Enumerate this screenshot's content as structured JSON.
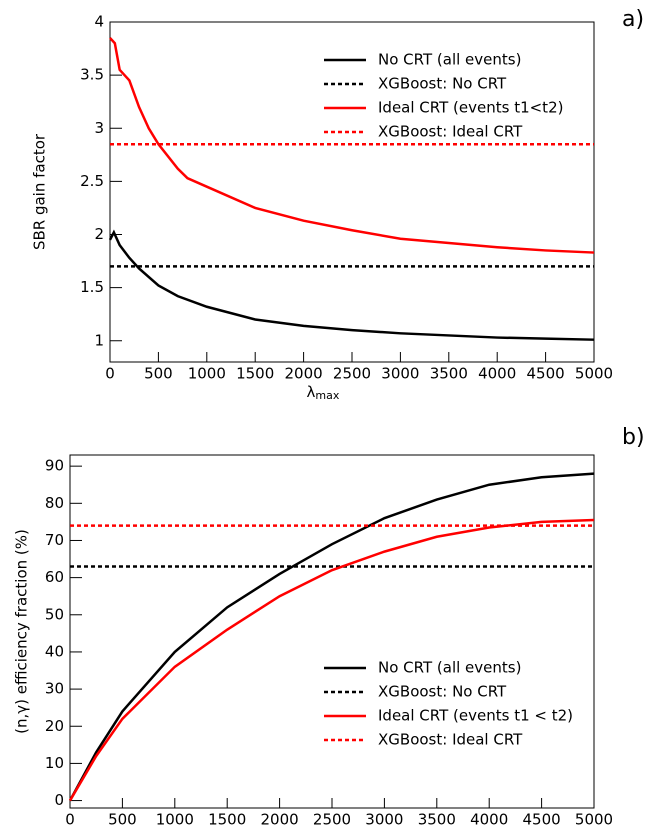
{
  "chart_data": [
    {
      "type": "line",
      "annotation": "a)",
      "ylabel": "SBR gain factor",
      "xlabel": "λ",
      "xlabel_subscript": "max",
      "xlim": [
        0,
        5000
      ],
      "ylim": [
        0.8,
        4
      ],
      "xticks": [
        0,
        500,
        1000,
        1500,
        2000,
        2500,
        3000,
        3500,
        4000,
        4500,
        5000
      ],
      "yticks": [
        1,
        1.5,
        2,
        2.5,
        3,
        3.5,
        4
      ],
      "legend": "upper right",
      "series": [
        {
          "name": "No CRT (all events)",
          "color": "#000000",
          "linestyle": "solid",
          "x": [
            0,
            40,
            100,
            200,
            300,
            500,
            700,
            1000,
            1500,
            2000,
            2500,
            3000,
            3500,
            4000,
            4500,
            5000
          ],
          "values": [
            1.95,
            2.02,
            1.9,
            1.78,
            1.68,
            1.52,
            1.42,
            1.32,
            1.2,
            1.14,
            1.1,
            1.07,
            1.05,
            1.03,
            1.02,
            1.01
          ]
        },
        {
          "name": "XGBoost: No CRT",
          "color": "#000000",
          "linestyle": "dotted",
          "x": [
            0,
            5000
          ],
          "values": [
            1.7,
            1.7
          ]
        },
        {
          "name": "Ideal CRT (events t1<t2)",
          "color": "#ff0000",
          "linestyle": "solid",
          "x": [
            0,
            50,
            100,
            200,
            300,
            400,
            500,
            700,
            800,
            1000,
            1500,
            2000,
            2500,
            3000,
            3500,
            4000,
            4500,
            5000
          ],
          "values": [
            3.85,
            3.8,
            3.55,
            3.45,
            3.2,
            3.0,
            2.85,
            2.62,
            2.53,
            2.45,
            2.25,
            2.13,
            2.04,
            1.96,
            1.92,
            1.88,
            1.85,
            1.83
          ]
        },
        {
          "name": "XGBoost: Ideal CRT",
          "color": "#ff0000",
          "linestyle": "dotted",
          "x": [
            0,
            5000
          ],
          "values": [
            2.85,
            2.85
          ]
        }
      ]
    },
    {
      "type": "line",
      "annotation": "b)",
      "ylabel": "(n,γ) efficiency fraction (%)",
      "xlabel": "λ",
      "xlabel_subscript": "max",
      "xlim": [
        0,
        5000
      ],
      "ylim": [
        -2,
        93
      ],
      "xticks": [
        0,
        500,
        1000,
        1500,
        2000,
        2500,
        3000,
        3500,
        4000,
        4500,
        5000
      ],
      "yticks": [
        0,
        10,
        20,
        30,
        40,
        50,
        60,
        70,
        80,
        90
      ],
      "legend": "lower right",
      "series": [
        {
          "name": "No CRT (all events)",
          "color": "#000000",
          "linestyle": "solid",
          "x": [
            0,
            250,
            500,
            1000,
            1500,
            2000,
            2500,
            3000,
            3500,
            4000,
            4500,
            5000
          ],
          "values": [
            0,
            13,
            24,
            40,
            52,
            61,
            69,
            76,
            81,
            85,
            87,
            88
          ]
        },
        {
          "name": "XGBoost: No CRT",
          "color": "#000000",
          "linestyle": "dotted",
          "x": [
            0,
            5000
          ],
          "values": [
            63,
            63
          ]
        },
        {
          "name": "Ideal CRT (events t1 < t2)",
          "color": "#ff0000",
          "linestyle": "solid",
          "x": [
            0,
            250,
            500,
            1000,
            1500,
            2000,
            2500,
            3000,
            3500,
            4000,
            4500,
            5000
          ],
          "values": [
            0,
            12,
            22,
            36,
            46,
            55,
            62,
            67,
            71,
            73.5,
            75,
            75.5
          ]
        },
        {
          "name": "XGBoost: Ideal CRT",
          "color": "#ff0000",
          "linestyle": "dotted",
          "x": [
            0,
            5000
          ],
          "values": [
            74,
            74
          ]
        }
      ]
    }
  ]
}
